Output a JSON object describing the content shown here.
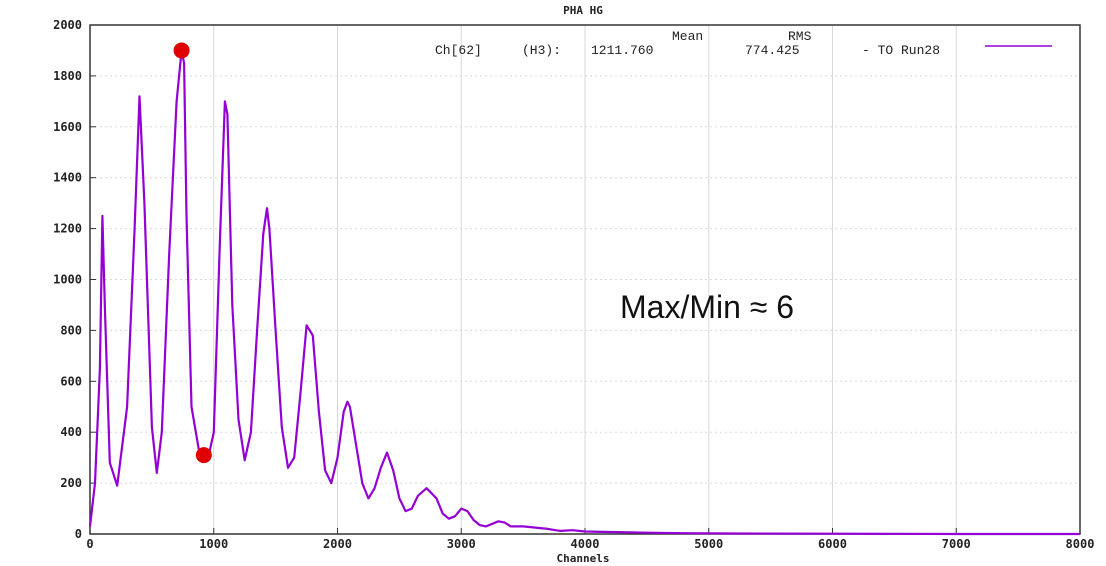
{
  "chart_data": {
    "type": "line",
    "title": "PHA HG",
    "xlabel": "Channels",
    "ylabel": "",
    "xlim": [
      0,
      8000
    ],
    "ylim": [
      0,
      2000
    ],
    "xticks": [
      0,
      1000,
      2000,
      3000,
      4000,
      5000,
      6000,
      7000,
      8000
    ],
    "yticks": [
      0,
      200,
      400,
      600,
      800,
      1000,
      1200,
      1400,
      1600,
      1800,
      2000
    ],
    "grid": true,
    "legend": {
      "position": "top-right",
      "header_mean": "Mean",
      "header_rms": "RMS",
      "entry_prefix": "Ch[62]",
      "entry_label": "(H3):",
      "mean": "1211.760",
      "rms": "774.425",
      "suffix": "- TO Run28",
      "color": "#9400d3"
    },
    "series": [
      {
        "color": "#9400d3",
        "x": [
          0,
          40,
          80,
          100,
          120,
          160,
          220,
          300,
          360,
          400,
          440,
          500,
          540,
          580,
          640,
          700,
          740,
          760,
          780,
          820,
          880,
          950,
          1000,
          1050,
          1090,
          1110,
          1150,
          1200,
          1250,
          1300,
          1350,
          1400,
          1430,
          1450,
          1500,
          1550,
          1600,
          1650,
          1700,
          1750,
          1800,
          1850,
          1900,
          1950,
          2000,
          2050,
          2080,
          2100,
          2150,
          2200,
          2250,
          2300,
          2350,
          2400,
          2450,
          2500,
          2550,
          2600,
          2650,
          2720,
          2800,
          2850,
          2900,
          2950,
          3000,
          3050,
          3100,
          3150,
          3200,
          3300,
          3350,
          3400,
          3500,
          3600,
          3700,
          3800,
          3900,
          4000,
          4200,
          4500,
          4800,
          5200,
          6000,
          7000,
          8000
        ],
        "y": [
          30,
          200,
          650,
          1250,
          900,
          280,
          190,
          500,
          1200,
          1720,
          1300,
          420,
          240,
          400,
          1100,
          1700,
          1900,
          1850,
          1250,
          500,
          330,
          290,
          400,
          1150,
          1700,
          1650,
          900,
          450,
          290,
          400,
          800,
          1180,
          1280,
          1200,
          800,
          420,
          260,
          300,
          550,
          820,
          780,
          480,
          250,
          200,
          300,
          480,
          520,
          500,
          350,
          200,
          140,
          180,
          260,
          320,
          250,
          140,
          90,
          100,
          150,
          180,
          140,
          80,
          60,
          70,
          100,
          90,
          55,
          35,
          30,
          50,
          45,
          30,
          30,
          25,
          20,
          12,
          15,
          10,
          8,
          5,
          3,
          2,
          1,
          0,
          0
        ]
      }
    ],
    "markers": [
      {
        "x": 740,
        "y": 1900,
        "color": "#e00000"
      },
      {
        "x": 920,
        "y": 310,
        "color": "#e00000"
      }
    ],
    "annotation": "Max/Min ≈ 6"
  }
}
